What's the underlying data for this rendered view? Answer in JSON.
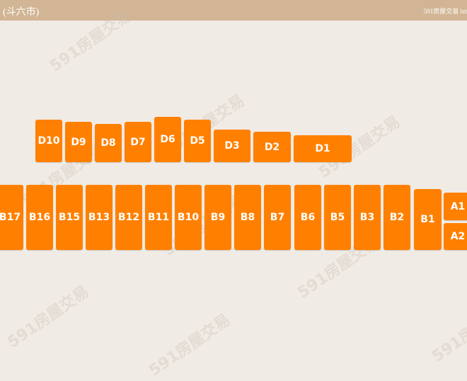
{
  "header": {
    "title": "(斗六市)",
    "brand": "591房屋交易 htt"
  },
  "colors": {
    "unit": "#ff8000",
    "header": "#d2b594",
    "background": "#f1ebe5"
  },
  "watermark": "591房屋交易",
  "units": {
    "D10": "D10",
    "D9": "D9",
    "D8": "D8",
    "D7": "D7",
    "D6": "D6",
    "D5": "D5",
    "D3": "D3",
    "D2": "D2",
    "D1": "D1",
    "B17": "B17",
    "B16": "B16",
    "B15": "B15",
    "B13": "B13",
    "B12": "B12",
    "B11": "B11",
    "B10": "B10",
    "B9": "B9",
    "B8": "B8",
    "B7": "B7",
    "B6": "B6",
    "B5": "B5",
    "B3": "B3",
    "B2": "B2",
    "B1": "B1",
    "A1": "A1",
    "A2": "A2"
  }
}
